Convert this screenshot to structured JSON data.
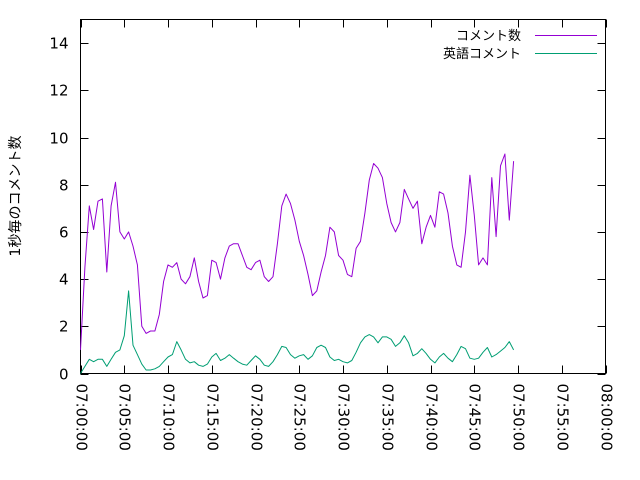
{
  "chart_data": {
    "type": "line",
    "ylabel": "1秒毎のコメント数",
    "xlim": [
      "07:00:00",
      "08:00:00"
    ],
    "ylim": [
      0,
      15
    ],
    "yticks": [
      "0",
      "2",
      "4",
      "6",
      "8",
      "10",
      "12",
      "14"
    ],
    "xticks": [
      "07:00:00",
      "07:05:00",
      "07:10:00",
      "07:15:00",
      "07:20:00",
      "07:25:00",
      "07:30:00",
      "07:35:00",
      "07:40:00",
      "07:45:00",
      "07:50:00",
      "07:55:00",
      "08:00:00"
    ],
    "grid": false,
    "legend": "top-right",
    "series": [
      {
        "name": "コメント数",
        "color": "#9400d3",
        "points": [
          [
            "07:00:00",
            1.0
          ],
          [
            "07:00:30",
            4.5
          ],
          [
            "07:01:00",
            7.1
          ],
          [
            "07:01:30",
            6.1
          ],
          [
            "07:02:00",
            7.3
          ],
          [
            "07:02:30",
            7.4
          ],
          [
            "07:03:00",
            4.3
          ],
          [
            "07:03:30",
            7.1
          ],
          [
            "07:04:00",
            8.1
          ],
          [
            "07:04:30",
            6.0
          ],
          [
            "07:05:00",
            5.7
          ],
          [
            "07:05:30",
            6.0
          ],
          [
            "07:06:00",
            5.4
          ],
          [
            "07:06:30",
            4.6
          ],
          [
            "07:07:00",
            2.0
          ],
          [
            "07:07:30",
            1.7
          ],
          [
            "07:08:00",
            1.8
          ],
          [
            "07:08:30",
            1.8
          ],
          [
            "07:09:00",
            2.5
          ],
          [
            "07:09:30",
            3.9
          ],
          [
            "07:10:00",
            4.6
          ],
          [
            "07:10:30",
            4.5
          ],
          [
            "07:11:00",
            4.7
          ],
          [
            "07:11:30",
            4.0
          ],
          [
            "07:12:00",
            3.8
          ],
          [
            "07:12:30",
            4.1
          ],
          [
            "07:13:00",
            4.9
          ],
          [
            "07:13:30",
            3.9
          ],
          [
            "07:14:00",
            3.2
          ],
          [
            "07:14:30",
            3.3
          ],
          [
            "07:15:00",
            4.8
          ],
          [
            "07:15:30",
            4.7
          ],
          [
            "07:16:00",
            4.0
          ],
          [
            "07:16:30",
            4.9
          ],
          [
            "07:17:00",
            5.4
          ],
          [
            "07:17:30",
            5.5
          ],
          [
            "07:18:00",
            5.5
          ],
          [
            "07:18:30",
            5.0
          ],
          [
            "07:19:00",
            4.5
          ],
          [
            "07:19:30",
            4.4
          ],
          [
            "07:20:00",
            4.7
          ],
          [
            "07:20:30",
            4.8
          ],
          [
            "07:21:00",
            4.1
          ],
          [
            "07:21:30",
            3.9
          ],
          [
            "07:22:00",
            4.1
          ],
          [
            "07:22:30",
            5.5
          ],
          [
            "07:23:00",
            7.1
          ],
          [
            "07:23:30",
            7.6
          ],
          [
            "07:24:00",
            7.2
          ],
          [
            "07:24:30",
            6.5
          ],
          [
            "07:25:00",
            5.6
          ],
          [
            "07:25:30",
            5.0
          ],
          [
            "07:26:00",
            4.2
          ],
          [
            "07:26:30",
            3.3
          ],
          [
            "07:27:00",
            3.5
          ],
          [
            "07:27:30",
            4.3
          ],
          [
            "07:28:00",
            5.0
          ],
          [
            "07:28:30",
            6.2
          ],
          [
            "07:29:00",
            6.0
          ],
          [
            "07:29:30",
            5.0
          ],
          [
            "07:30:00",
            4.8
          ],
          [
            "07:30:30",
            4.2
          ],
          [
            "07:31:00",
            4.1
          ],
          [
            "07:31:30",
            5.3
          ],
          [
            "07:32:00",
            5.6
          ],
          [
            "07:32:30",
            6.8
          ],
          [
            "07:33:00",
            8.2
          ],
          [
            "07:33:30",
            8.9
          ],
          [
            "07:34:00",
            8.7
          ],
          [
            "07:34:30",
            8.3
          ],
          [
            "07:35:00",
            7.2
          ],
          [
            "07:35:30",
            6.4
          ],
          [
            "07:36:00",
            6.0
          ],
          [
            "07:36:30",
            6.4
          ],
          [
            "07:37:00",
            7.8
          ],
          [
            "07:37:30",
            7.4
          ],
          [
            "07:38:00",
            7.0
          ],
          [
            "07:38:30",
            7.3
          ],
          [
            "07:39:00",
            5.5
          ],
          [
            "07:39:30",
            6.2
          ],
          [
            "07:40:00",
            6.7
          ],
          [
            "07:40:30",
            6.2
          ],
          [
            "07:41:00",
            7.7
          ],
          [
            "07:41:30",
            7.6
          ],
          [
            "07:42:00",
            6.8
          ],
          [
            "07:42:30",
            5.4
          ],
          [
            "07:43:00",
            4.6
          ],
          [
            "07:43:30",
            4.5
          ],
          [
            "07:44:00",
            6.0
          ],
          [
            "07:44:30",
            8.4
          ],
          [
            "07:45:00",
            6.7
          ],
          [
            "07:45:30",
            4.6
          ],
          [
            "07:46:00",
            4.9
          ],
          [
            "07:46:30",
            4.6
          ],
          [
            "07:47:00",
            8.3
          ],
          [
            "07:47:30",
            5.8
          ],
          [
            "07:48:00",
            8.8
          ],
          [
            "07:48:30",
            9.3
          ],
          [
            "07:49:00",
            6.5
          ],
          [
            "07:49:30",
            9.0
          ]
        ]
      },
      {
        "name": "英語コメント",
        "color": "#009e73",
        "points": [
          [
            "07:00:00",
            0.0
          ],
          [
            "07:00:30",
            0.3
          ],
          [
            "07:01:00",
            0.6
          ],
          [
            "07:01:30",
            0.5
          ],
          [
            "07:02:00",
            0.6
          ],
          [
            "07:02:30",
            0.6
          ],
          [
            "07:03:00",
            0.3
          ],
          [
            "07:03:30",
            0.6
          ],
          [
            "07:04:00",
            0.9
          ],
          [
            "07:04:30",
            1.0
          ],
          [
            "07:05:00",
            1.6
          ],
          [
            "07:05:30",
            3.5
          ],
          [
            "07:06:00",
            1.2
          ],
          [
            "07:06:30",
            0.8
          ],
          [
            "07:07:00",
            0.4
          ],
          [
            "07:07:30",
            0.15
          ],
          [
            "07:08:00",
            0.15
          ],
          [
            "07:08:30",
            0.2
          ],
          [
            "07:09:00",
            0.3
          ],
          [
            "07:09:30",
            0.5
          ],
          [
            "07:10:00",
            0.7
          ],
          [
            "07:10:30",
            0.8
          ],
          [
            "07:11:00",
            1.35
          ],
          [
            "07:11:30",
            1.0
          ],
          [
            "07:12:00",
            0.6
          ],
          [
            "07:12:30",
            0.45
          ],
          [
            "07:13:00",
            0.5
          ],
          [
            "07:13:30",
            0.35
          ],
          [
            "07:14:00",
            0.3
          ],
          [
            "07:14:30",
            0.4
          ],
          [
            "07:15:00",
            0.7
          ],
          [
            "07:15:30",
            0.85
          ],
          [
            "07:16:00",
            0.55
          ],
          [
            "07:16:30",
            0.65
          ],
          [
            "07:17:00",
            0.8
          ],
          [
            "07:17:30",
            0.65
          ],
          [
            "07:18:00",
            0.5
          ],
          [
            "07:18:30",
            0.4
          ],
          [
            "07:19:00",
            0.35
          ],
          [
            "07:19:30",
            0.55
          ],
          [
            "07:20:00",
            0.75
          ],
          [
            "07:20:30",
            0.6
          ],
          [
            "07:21:00",
            0.35
          ],
          [
            "07:21:30",
            0.3
          ],
          [
            "07:22:00",
            0.5
          ],
          [
            "07:22:30",
            0.8
          ],
          [
            "07:23:00",
            1.15
          ],
          [
            "07:23:30",
            1.1
          ],
          [
            "07:24:00",
            0.8
          ],
          [
            "07:24:30",
            0.65
          ],
          [
            "07:25:00",
            0.75
          ],
          [
            "07:25:30",
            0.8
          ],
          [
            "07:26:00",
            0.6
          ],
          [
            "07:26:30",
            0.75
          ],
          [
            "07:27:00",
            1.1
          ],
          [
            "07:27:30",
            1.2
          ],
          [
            "07:28:00",
            1.1
          ],
          [
            "07:28:30",
            0.7
          ],
          [
            "07:29:00",
            0.55
          ],
          [
            "07:29:30",
            0.6
          ],
          [
            "07:30:00",
            0.5
          ],
          [
            "07:30:30",
            0.45
          ],
          [
            "07:31:00",
            0.55
          ],
          [
            "07:31:30",
            0.9
          ],
          [
            "07:32:00",
            1.3
          ],
          [
            "07:32:30",
            1.55
          ],
          [
            "07:33:00",
            1.65
          ],
          [
            "07:33:30",
            1.55
          ],
          [
            "07:34:00",
            1.3
          ],
          [
            "07:34:30",
            1.55
          ],
          [
            "07:35:00",
            1.55
          ],
          [
            "07:35:30",
            1.45
          ],
          [
            "07:36:00",
            1.15
          ],
          [
            "07:36:30",
            1.3
          ],
          [
            "07:37:00",
            1.6
          ],
          [
            "07:37:30",
            1.3
          ],
          [
            "07:38:00",
            0.75
          ],
          [
            "07:38:30",
            0.85
          ],
          [
            "07:39:00",
            1.05
          ],
          [
            "07:39:30",
            0.85
          ],
          [
            "07:40:00",
            0.6
          ],
          [
            "07:40:30",
            0.45
          ],
          [
            "07:41:00",
            0.7
          ],
          [
            "07:41:30",
            0.85
          ],
          [
            "07:42:00",
            0.65
          ],
          [
            "07:42:30",
            0.5
          ],
          [
            "07:43:00",
            0.8
          ],
          [
            "07:43:30",
            1.15
          ],
          [
            "07:44:00",
            1.05
          ],
          [
            "07:44:30",
            0.65
          ],
          [
            "07:45:00",
            0.6
          ],
          [
            "07:45:30",
            0.65
          ],
          [
            "07:46:00",
            0.9
          ],
          [
            "07:46:30",
            1.1
          ],
          [
            "07:47:00",
            0.7
          ],
          [
            "07:47:30",
            0.8
          ],
          [
            "07:48:00",
            0.95
          ],
          [
            "07:48:30",
            1.1
          ],
          [
            "07:49:00",
            1.35
          ],
          [
            "07:49:30",
            1.0
          ]
        ]
      }
    ]
  }
}
